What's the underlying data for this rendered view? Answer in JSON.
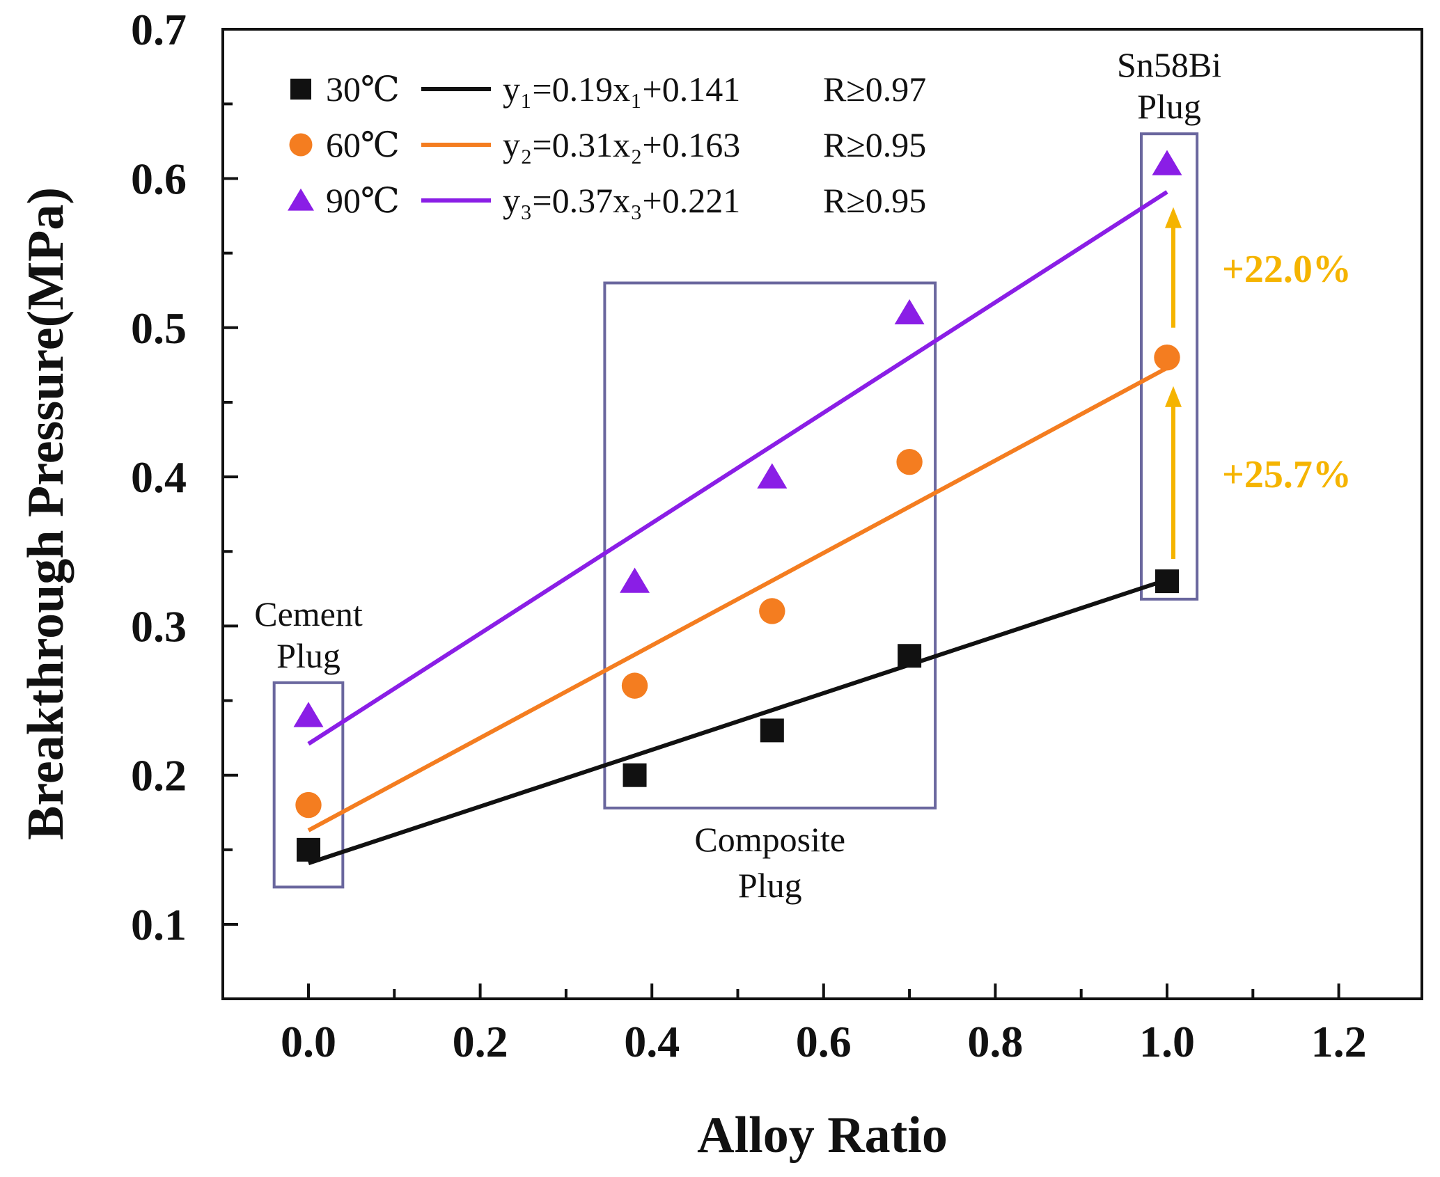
{
  "chart_data": {
    "type": "scatter",
    "title": "",
    "xlabel": "Alloy Ratio",
    "ylabel": "Breakthrough Pressure(MPa)",
    "xlim": [
      -0.1,
      1.3
    ],
    "ylim": [
      0.05,
      0.7
    ],
    "xticks": [
      0.0,
      0.2,
      0.4,
      0.6,
      0.8,
      1.0,
      1.2
    ],
    "xtick_labels": [
      "0.0",
      "0.2",
      "0.4",
      "0.6",
      "0.8",
      "1.0",
      "1.2"
    ],
    "yticks": [
      0.1,
      0.2,
      0.3,
      0.4,
      0.5,
      0.6,
      0.7
    ],
    "ytick_labels": [
      "0.1",
      "0.2",
      "0.3",
      "0.4",
      "0.5",
      "0.6",
      "0.7"
    ],
    "legend_position": "top-left",
    "series": [
      {
        "name": "30℃",
        "marker": "square",
        "color": "#111111",
        "x": [
          0.0,
          0.38,
          0.54,
          0.7,
          1.0
        ],
        "y": [
          0.15,
          0.2,
          0.23,
          0.28,
          0.33
        ],
        "fit": {
          "slope": 0.19,
          "intercept": 0.141,
          "x_range": [
            0.0,
            1.0
          ]
        },
        "equation": "y₁=0.19x₁+0.141",
        "r_label": "R≥0.97"
      },
      {
        "name": "60℃",
        "marker": "circle",
        "color": "#f47d20",
        "x": [
          0.0,
          0.38,
          0.54,
          0.7,
          1.0
        ],
        "y": [
          0.18,
          0.26,
          0.31,
          0.41,
          0.48
        ],
        "fit": {
          "slope": 0.31,
          "intercept": 0.163,
          "x_range": [
            0.0,
            1.0
          ]
        },
        "equation": "y₂=0.31x₂+0.163",
        "r_label": "R≥0.95"
      },
      {
        "name": "90℃",
        "marker": "triangle",
        "color": "#8a1ee6",
        "x": [
          0.0,
          0.38,
          0.54,
          0.7,
          1.0
        ],
        "y": [
          0.24,
          0.33,
          0.4,
          0.51,
          0.61
        ],
        "fit": {
          "slope": 0.37,
          "intercept": 0.221,
          "x_range": [
            0.0,
            1.0
          ]
        },
        "equation": "y₃=0.37x₃+0.221",
        "r_label": "R≥0.95"
      }
    ],
    "groups": [
      {
        "label_line1": "Cement",
        "label_line2": "Plug",
        "label_position": "above",
        "box": {
          "x0": -0.04,
          "x1": 0.04,
          "y0": 0.125,
          "y1": 0.262
        }
      },
      {
        "label_line1": "Composite",
        "label_line2": "Plug",
        "label_position": "below",
        "box": {
          "x0": 0.345,
          "x1": 0.73,
          "y0": 0.178,
          "y1": 0.53
        }
      },
      {
        "label_line1": "Sn58Bi",
        "label_line2": "Plug",
        "label_position": "above",
        "box": {
          "x0": 0.97,
          "x1": 1.035,
          "y0": 0.318,
          "y1": 0.63
        }
      }
    ],
    "annotations": [
      {
        "text": "+25.7%",
        "x": 1.0,
        "y_from": 0.345,
        "y_to": 0.458,
        "color": "#f5b400"
      },
      {
        "text": "+22.0%",
        "x": 1.0,
        "y_from": 0.5,
        "y_to": 0.578,
        "color": "#f5b400"
      }
    ]
  }
}
